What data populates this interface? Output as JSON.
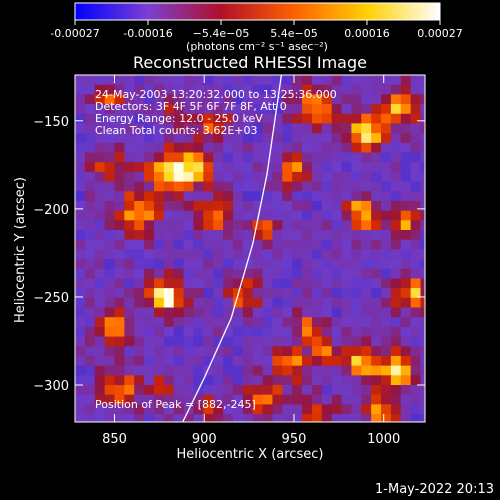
{
  "chart_data": {
    "type": "heatmap",
    "title": "Reconstructed RHESSI Image",
    "xlabel": "Heliocentric X (arcsec)",
    "ylabel": "Heliocentric Y (arcsec)",
    "xlim": [
      828,
      1023
    ],
    "ylim": [
      -321,
      -124
    ],
    "x_ticks": [
      850,
      900,
      950,
      1000
    ],
    "y_ticks": [
      -150,
      -200,
      -250,
      -300
    ],
    "colorbar": {
      "min": -0.00027,
      "max": 0.00027,
      "tick_labels": [
        "-0.00027",
        "-0.00016",
        "−5.4e−05",
        "5.4e−05",
        "0.00016",
        "0.00027"
      ],
      "label": "(photons cm⁻² s⁻¹ asec⁻²)",
      "colors": [
        "#0000ff",
        "#7b3fd0",
        "#b0102a",
        "#ff6000",
        "#ffd000",
        "#ffffff"
      ]
    },
    "info_lines": [
      "24-May-2003 13:20:32.000 to 13:25:36.000",
      "Detectors: 3F 4F 5F 6F 7F 8F, Att 0",
      "Energy Range: 12.0 - 25.0 keV",
      "Clean     Total counts: 3.62E+03"
    ],
    "peak_label": "Position of Peak = [882,-245]",
    "peak_xy": [
      882,
      -245
    ],
    "limb_line": [
      [
        888,
        -321
      ],
      [
        900,
        -296
      ],
      [
        915,
        -262
      ],
      [
        927,
        -220
      ],
      [
        935,
        -180
      ],
      [
        943,
        -124
      ]
    ],
    "sources": [
      {
        "x": 876,
        "y": -247,
        "amp": 1.0,
        "r": 7
      },
      {
        "x": 878,
        "y": -176,
        "amp": 0.85,
        "r": 9
      },
      {
        "x": 860,
        "y": -200,
        "amp": 0.8,
        "r": 8
      },
      {
        "x": 903,
        "y": -200,
        "amp": 0.7,
        "r": 7
      },
      {
        "x": 893,
        "y": -175,
        "amp": 0.8,
        "r": 6
      },
      {
        "x": 845,
        "y": -175,
        "amp": 0.55,
        "r": 7
      },
      {
        "x": 902,
        "y": -150,
        "amp": 0.6,
        "r": 7
      },
      {
        "x": 920,
        "y": -247,
        "amp": 0.55,
        "r": 7
      },
      {
        "x": 930,
        "y": -210,
        "amp": 0.55,
        "r": 6
      },
      {
        "x": 948,
        "y": -175,
        "amp": 0.65,
        "r": 7
      },
      {
        "x": 960,
        "y": -140,
        "amp": 0.75,
        "r": 8
      },
      {
        "x": 987,
        "y": -155,
        "amp": 0.9,
        "r": 7
      },
      {
        "x": 1005,
        "y": -140,
        "amp": 0.7,
        "r": 8
      },
      {
        "x": 985,
        "y": -200,
        "amp": 0.75,
        "r": 7
      },
      {
        "x": 1008,
        "y": -205,
        "amp": 0.7,
        "r": 6
      },
      {
        "x": 1013,
        "y": -245,
        "amp": 0.75,
        "r": 7
      },
      {
        "x": 1005,
        "y": -290,
        "amp": 0.8,
        "r": 8
      },
      {
        "x": 985,
        "y": -283,
        "amp": 0.75,
        "r": 7
      },
      {
        "x": 965,
        "y": -280,
        "amp": 0.6,
        "r": 6
      },
      {
        "x": 955,
        "y": -265,
        "amp": 0.55,
        "r": 6
      },
      {
        "x": 945,
        "y": -285,
        "amp": 0.7,
        "r": 7
      },
      {
        "x": 930,
        "y": -305,
        "amp": 0.7,
        "r": 7
      },
      {
        "x": 960,
        "y": -315,
        "amp": 0.55,
        "r": 7
      },
      {
        "x": 995,
        "y": -312,
        "amp": 0.65,
        "r": 7
      },
      {
        "x": 848,
        "y": -265,
        "amp": 0.65,
        "r": 7
      },
      {
        "x": 850,
        "y": -300,
        "amp": 0.6,
        "r": 8
      },
      {
        "x": 875,
        "y": -300,
        "amp": 0.5,
        "r": 6
      },
      {
        "x": 845,
        "y": -135,
        "amp": 0.5,
        "r": 6
      },
      {
        "x": 880,
        "y": -140,
        "amp": 0.45,
        "r": 6
      },
      {
        "x": 900,
        "y": -310,
        "amp": 0.55,
        "r": 5
      }
    ]
  },
  "timestamp": "1-May-2022 20:13"
}
